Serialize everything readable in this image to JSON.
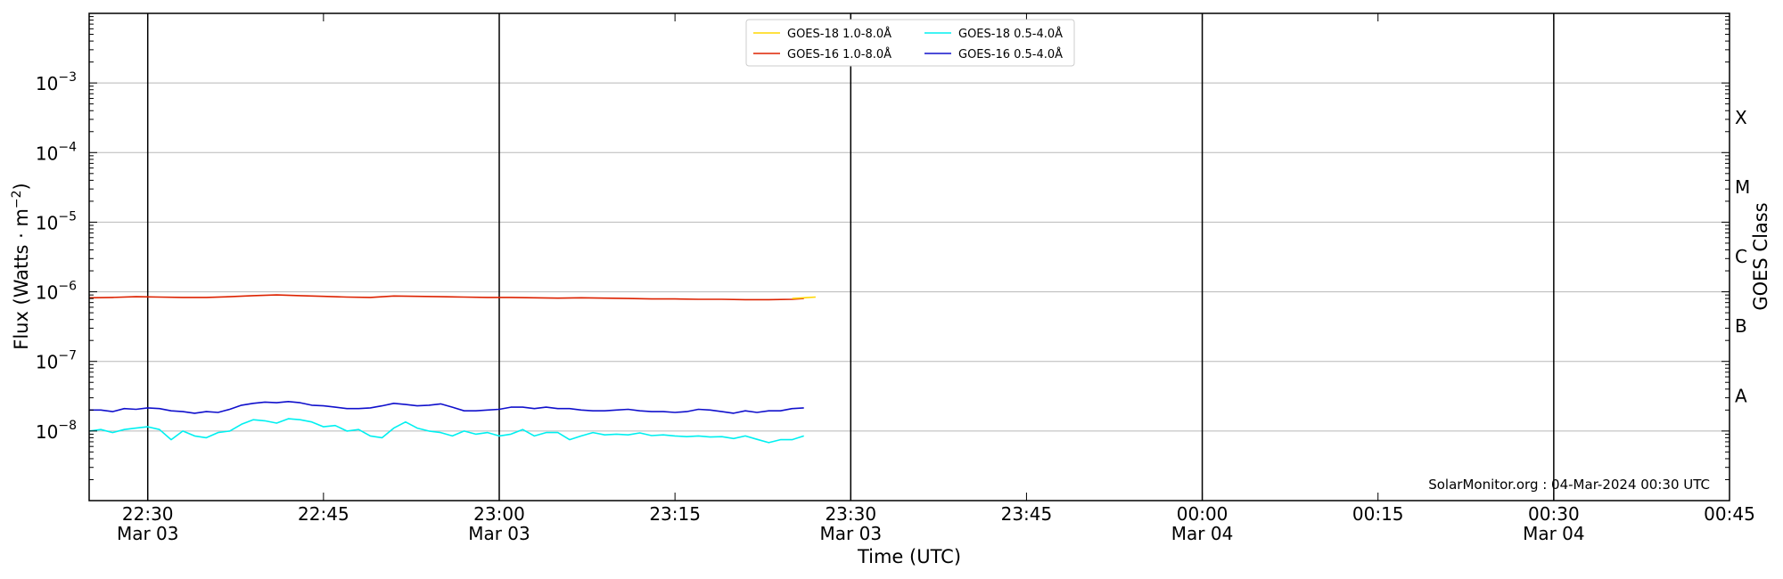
{
  "chart_data": {
    "type": "line",
    "title": "",
    "xlabel": "Time (UTC)",
    "ylabel_text": "Flux (Watts · m",
    "ylabel_unit_exp": "−2",
    "ylabel_close": ")",
    "y2label": "GOES Class",
    "y_scale": "log",
    "xlim": [
      "2024-03-03 22:25",
      "2024-03-04 00:45"
    ],
    "ylim": [
      1e-09,
      0.01
    ],
    "grid": "horizontal",
    "legend_position": "top-center",
    "watermark": "SolarMonitor.org : 04-Mar-2024 00:30 UTC",
    "x_ticks": [
      {
        "time": "2024-03-03 22:30",
        "label": "22:30",
        "sublabel": "Mar 03",
        "vline": true
      },
      {
        "time": "2024-03-03 22:45",
        "label": "22:45",
        "sublabel": "",
        "vline": false
      },
      {
        "time": "2024-03-03 23:00",
        "label": "23:00",
        "sublabel": "Mar 03",
        "vline": true
      },
      {
        "time": "2024-03-03 23:15",
        "label": "23:15",
        "sublabel": "",
        "vline": false
      },
      {
        "time": "2024-03-03 23:30",
        "label": "23:30",
        "sublabel": "Mar 03",
        "vline": true
      },
      {
        "time": "2024-03-03 23:45",
        "label": "23:45",
        "sublabel": "",
        "vline": false
      },
      {
        "time": "2024-03-04 00:00",
        "label": "00:00",
        "sublabel": "Mar 04",
        "vline": true
      },
      {
        "time": "2024-03-04 00:15",
        "label": "00:15",
        "sublabel": "",
        "vline": false
      },
      {
        "time": "2024-03-04 00:30",
        "label": "00:30",
        "sublabel": "Mar 04",
        "vline": true
      },
      {
        "time": "2024-03-04 00:45",
        "label": "00:45",
        "sublabel": "",
        "vline": false
      }
    ],
    "y_ticks": [
      {
        "value": 1e-08,
        "base": "10",
        "exp": "−8"
      },
      {
        "value": 1e-07,
        "base": "10",
        "exp": "−7"
      },
      {
        "value": 1e-06,
        "base": "10",
        "exp": "−6"
      },
      {
        "value": 1e-05,
        "base": "10",
        "exp": "−5"
      },
      {
        "value": 0.0001,
        "base": "10",
        "exp": "−4"
      },
      {
        "value": 0.001,
        "base": "10",
        "exp": "−3"
      }
    ],
    "goes_classes": [
      {
        "label": "A",
        "value": 3.2e-08
      },
      {
        "label": "B",
        "value": 3.2e-07
      },
      {
        "label": "C",
        "value": 3.2e-06
      },
      {
        "label": "M",
        "value": 3.2e-05
      },
      {
        "label": "X",
        "value": 0.00032
      }
    ],
    "series": [
      {
        "name": "GOES-18 1.0-8.0Å",
        "color": "#ffd700",
        "x": [
          "2024-03-03 23:25",
          "2024-03-03 23:26",
          "2024-03-03 23:27"
        ],
        "y": [
          8e-07,
          8.2e-07,
          8.4e-07
        ]
      },
      {
        "name": "GOES-16 1.0-8.0Å",
        "color": "#dd2200",
        "x": [
          "2024-03-03 22:25",
          "2024-03-03 22:27",
          "2024-03-03 22:29",
          "2024-03-03 22:31",
          "2024-03-03 22:33",
          "2024-03-03 22:35",
          "2024-03-03 22:37",
          "2024-03-03 22:39",
          "2024-03-03 22:41",
          "2024-03-03 22:43",
          "2024-03-03 22:45",
          "2024-03-03 22:47",
          "2024-03-03 22:49",
          "2024-03-03 22:51",
          "2024-03-03 22:53",
          "2024-03-03 22:55",
          "2024-03-03 22:57",
          "2024-03-03 22:59",
          "2024-03-03 23:01",
          "2024-03-03 23:03",
          "2024-03-03 23:05",
          "2024-03-03 23:07",
          "2024-03-03 23:09",
          "2024-03-03 23:11",
          "2024-03-03 23:13",
          "2024-03-03 23:15",
          "2024-03-03 23:17",
          "2024-03-03 23:19",
          "2024-03-03 23:21",
          "2024-03-03 23:23",
          "2024-03-03 23:25",
          "2024-03-03 23:26"
        ],
        "y": [
          8.2e-07,
          8.3e-07,
          8.5e-07,
          8.4e-07,
          8.3e-07,
          8.3e-07,
          8.5e-07,
          8.8e-07,
          9e-07,
          8.8e-07,
          8.6e-07,
          8.4e-07,
          8.3e-07,
          8.7e-07,
          8.6e-07,
          8.5e-07,
          8.4e-07,
          8.3e-07,
          8.3e-07,
          8.2e-07,
          8.1e-07,
          8.2e-07,
          8.1e-07,
          8e-07,
          7.9e-07,
          7.9e-07,
          7.8e-07,
          7.8e-07,
          7.7e-07,
          7.7e-07,
          7.8e-07,
          8e-07
        ]
      },
      {
        "name": "GOES-18 0.5-4.0Å",
        "color": "#00f0f0",
        "x": [
          "2024-03-03 22:25",
          "2024-03-03 22:26",
          "2024-03-03 22:27",
          "2024-03-03 22:28",
          "2024-03-03 22:29",
          "2024-03-03 22:30",
          "2024-03-03 22:31",
          "2024-03-03 22:32",
          "2024-03-03 22:33",
          "2024-03-03 22:34",
          "2024-03-03 22:35",
          "2024-03-03 22:36",
          "2024-03-03 22:37",
          "2024-03-03 22:38",
          "2024-03-03 22:39",
          "2024-03-03 22:40",
          "2024-03-03 22:41",
          "2024-03-03 22:42",
          "2024-03-03 22:43",
          "2024-03-03 22:44",
          "2024-03-03 22:45",
          "2024-03-03 22:46",
          "2024-03-03 22:47",
          "2024-03-03 22:48",
          "2024-03-03 22:49",
          "2024-03-03 22:50",
          "2024-03-03 22:51",
          "2024-03-03 22:52",
          "2024-03-03 22:53",
          "2024-03-03 22:54",
          "2024-03-03 22:55",
          "2024-03-03 22:56",
          "2024-03-03 22:57",
          "2024-03-03 22:58",
          "2024-03-03 22:59",
          "2024-03-03 23:00",
          "2024-03-03 23:01",
          "2024-03-03 23:02",
          "2024-03-03 23:03",
          "2024-03-03 23:04",
          "2024-03-03 23:05",
          "2024-03-03 23:06",
          "2024-03-03 23:07",
          "2024-03-03 23:08",
          "2024-03-03 23:09",
          "2024-03-03 23:10",
          "2024-03-03 23:11",
          "2024-03-03 23:12",
          "2024-03-03 23:13",
          "2024-03-03 23:14",
          "2024-03-03 23:15",
          "2024-03-03 23:16",
          "2024-03-03 23:17",
          "2024-03-03 23:18",
          "2024-03-03 23:19",
          "2024-03-03 23:20",
          "2024-03-03 23:21",
          "2024-03-03 23:22",
          "2024-03-03 23:23",
          "2024-03-03 23:24",
          "2024-03-03 23:25",
          "2024-03-03 23:26"
        ],
        "y": [
          1e-08,
          1.05e-08,
          9.5e-09,
          1.05e-08,
          1.1e-08,
          1.15e-08,
          1.05e-08,
          7.5e-09,
          1e-08,
          8.5e-09,
          8e-09,
          9.5e-09,
          1e-08,
          1.25e-08,
          1.45e-08,
          1.4e-08,
          1.3e-08,
          1.5e-08,
          1.45e-08,
          1.35e-08,
          1.15e-08,
          1.2e-08,
          1e-08,
          1.05e-08,
          8.5e-09,
          8e-09,
          1.1e-08,
          1.35e-08,
          1.1e-08,
          1e-08,
          9.5e-09,
          8.5e-09,
          1e-08,
          9e-09,
          9.5e-09,
          8.5e-09,
          9e-09,
          1.05e-08,
          8.5e-09,
          9.5e-09,
          9.5e-09,
          7.5e-09,
          8.5e-09,
          9.5e-09,
          8.8e-09,
          9e-09,
          8.8e-09,
          9.4e-09,
          8.6e-09,
          8.8e-09,
          8.5e-09,
          8.3e-09,
          8.5e-09,
          8.2e-09,
          8.3e-09,
          7.8e-09,
          8.5e-09,
          7.6e-09,
          6.8e-09,
          7.5e-09,
          7.5e-09,
          8.5e-09
        ]
      },
      {
        "name": "GOES-16 0.5-4.0Å",
        "color": "#1010cc",
        "x": [
          "2024-03-03 22:25",
          "2024-03-03 22:26",
          "2024-03-03 22:27",
          "2024-03-03 22:28",
          "2024-03-03 22:29",
          "2024-03-03 22:30",
          "2024-03-03 22:31",
          "2024-03-03 22:32",
          "2024-03-03 22:33",
          "2024-03-03 22:34",
          "2024-03-03 22:35",
          "2024-03-03 22:36",
          "2024-03-03 22:37",
          "2024-03-03 22:38",
          "2024-03-03 22:39",
          "2024-03-03 22:40",
          "2024-03-03 22:41",
          "2024-03-03 22:42",
          "2024-03-03 22:43",
          "2024-03-03 22:44",
          "2024-03-03 22:45",
          "2024-03-03 22:46",
          "2024-03-03 22:47",
          "2024-03-03 22:48",
          "2024-03-03 22:49",
          "2024-03-03 22:50",
          "2024-03-03 22:51",
          "2024-03-03 22:52",
          "2024-03-03 22:53",
          "2024-03-03 22:54",
          "2024-03-03 22:55",
          "2024-03-03 22:56",
          "2024-03-03 22:57",
          "2024-03-03 22:58",
          "2024-03-03 22:59",
          "2024-03-03 23:00",
          "2024-03-03 23:01",
          "2024-03-03 23:02",
          "2024-03-03 23:03",
          "2024-03-03 23:04",
          "2024-03-03 23:05",
          "2024-03-03 23:06",
          "2024-03-03 23:07",
          "2024-03-03 23:08",
          "2024-03-03 23:09",
          "2024-03-03 23:10",
          "2024-03-03 23:11",
          "2024-03-03 23:12",
          "2024-03-03 23:13",
          "2024-03-03 23:14",
          "2024-03-03 23:15",
          "2024-03-03 23:16",
          "2024-03-03 23:17",
          "2024-03-03 23:18",
          "2024-03-03 23:19",
          "2024-03-03 23:20",
          "2024-03-03 23:21",
          "2024-03-03 23:22",
          "2024-03-03 23:23",
          "2024-03-03 23:24",
          "2024-03-03 23:25",
          "2024-03-03 23:26"
        ],
        "y": [
          2e-08,
          2e-08,
          1.9e-08,
          2.1e-08,
          2.05e-08,
          2.15e-08,
          2.1e-08,
          1.95e-08,
          1.9e-08,
          1.8e-08,
          1.9e-08,
          1.85e-08,
          2.05e-08,
          2.35e-08,
          2.5e-08,
          2.6e-08,
          2.55e-08,
          2.65e-08,
          2.55e-08,
          2.35e-08,
          2.3e-08,
          2.2e-08,
          2.1e-08,
          2.1e-08,
          2.15e-08,
          2.3e-08,
          2.5e-08,
          2.4e-08,
          2.3e-08,
          2.35e-08,
          2.45e-08,
          2.2e-08,
          1.95e-08,
          1.95e-08,
          2e-08,
          2.05e-08,
          2.2e-08,
          2.2e-08,
          2.1e-08,
          2.2e-08,
          2.1e-08,
          2.1e-08,
          2e-08,
          1.95e-08,
          1.95e-08,
          2e-08,
          2.05e-08,
          1.95e-08,
          1.9e-08,
          1.9e-08,
          1.85e-08,
          1.9e-08,
          2.05e-08,
          2e-08,
          1.9e-08,
          1.8e-08,
          1.95e-08,
          1.85e-08,
          1.95e-08,
          1.95e-08,
          2.1e-08,
          2.15e-08
        ]
      }
    ]
  }
}
